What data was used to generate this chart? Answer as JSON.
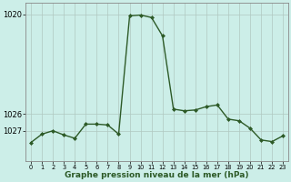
{
  "x": [
    0,
    1,
    2,
    3,
    4,
    5,
    6,
    7,
    8,
    9,
    10,
    11,
    12,
    13,
    14,
    15,
    16,
    17,
    18,
    19,
    20,
    21,
    22,
    23
  ],
  "y": [
    1027.7,
    1027.2,
    1027.0,
    1027.25,
    1027.45,
    1026.6,
    1026.6,
    1026.65,
    1027.2,
    1020.1,
    1020.05,
    1020.2,
    1021.3,
    1025.7,
    1025.8,
    1025.75,
    1025.55,
    1025.45,
    1026.3,
    1026.4,
    1026.85,
    1027.55,
    1027.65,
    1027.3
  ],
  "line_color": "#2d5a27",
  "marker_color": "#2d5a27",
  "bg_color": "#cceee8",
  "grid_color": "#b0c8c0",
  "xlabel": "Graphe pression niveau de la mer (hPa)",
  "ymin": 1028.8,
  "ymax": 1019.3,
  "ytick_positions": [
    1020,
    1027,
    1026
  ],
  "ytick_labels": [
    "1020",
    "1027",
    "1026"
  ]
}
